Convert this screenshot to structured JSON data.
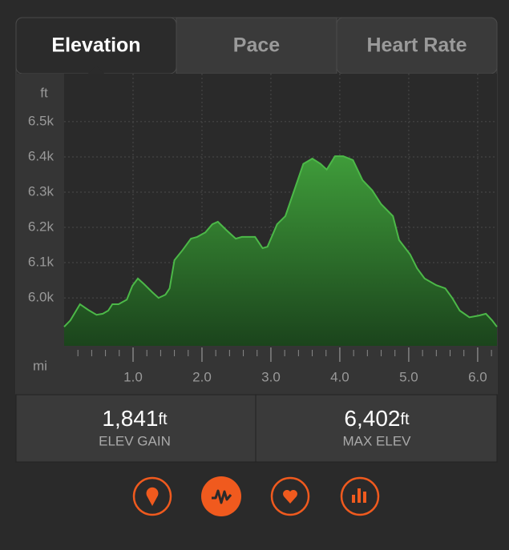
{
  "tabs": [
    "Elevation",
    "Pace",
    "Heart Rate"
  ],
  "chart_data": {
    "type": "area",
    "y_unit": "ft",
    "x_unit": "mi",
    "color": "#4cb848",
    "grid": true,
    "x": [
      0,
      0.09,
      0.23,
      0.35,
      0.47,
      0.56,
      0.64,
      0.7,
      0.79,
      0.91,
      0.99,
      1.07,
      1.16,
      1.28,
      1.37,
      1.47,
      1.53,
      1.6,
      1.72,
      1.84,
      1.93,
      2.05,
      2.15,
      2.23,
      2.35,
      2.49,
      2.58,
      2.77,
      2.88,
      2.95,
      3.09,
      3.21,
      3.33,
      3.47,
      3.6,
      3.72,
      3.81,
      3.93,
      4.05,
      4.19,
      4.33,
      4.47,
      4.6,
      4.77,
      4.86,
      5.02,
      5.12,
      5.23,
      5.4,
      5.53,
      5.63,
      5.74,
      5.88,
      6.02,
      6.12,
      6.21,
      6.28
    ],
    "values": [
      5918,
      5936,
      5982,
      5966,
      5952,
      5955,
      5964,
      5982,
      5982,
      5995,
      6034,
      6055,
      6039,
      6016,
      6000,
      6009,
      6027,
      6107,
      6136,
      6168,
      6173,
      6186,
      6209,
      6216,
      6193,
      6168,
      6173,
      6173,
      6141,
      6145,
      6209,
      6232,
      6300,
      6380,
      6395,
      6380,
      6364,
      6402,
      6402,
      6391,
      6334,
      6305,
      6266,
      6232,
      6164,
      6123,
      6084,
      6055,
      6036,
      6027,
      6000,
      5964,
      5945,
      5950,
      5955,
      5936,
      5918
    ],
    "xlim": [
      0,
      6.28
    ],
    "ylim": [
      5864,
      6636
    ],
    "xticks": [
      {
        "value": 1,
        "label": "1.0"
      },
      {
        "value": 2,
        "label": "2.0"
      },
      {
        "value": 3,
        "label": "3.0"
      },
      {
        "value": 4,
        "label": "4.0"
      },
      {
        "value": 5,
        "label": "5.0"
      },
      {
        "value": 6,
        "label": "6.0"
      }
    ],
    "xminor": [
      0.2,
      0.4,
      0.6,
      0.8,
      1.2,
      1.4,
      1.6,
      1.8,
      2.2,
      2.4,
      2.6,
      2.8,
      3.2,
      3.4,
      3.6,
      3.8,
      4.2,
      4.4,
      4.6,
      4.8,
      5.2,
      5.4,
      5.6,
      5.8,
      6.2
    ],
    "yticks": [
      {
        "value": 6000,
        "label": "6.0k"
      },
      {
        "value": 6100,
        "label": "6.1k"
      },
      {
        "value": 6200,
        "label": "6.2k"
      },
      {
        "value": 6300,
        "label": "6.3k"
      },
      {
        "value": 6400,
        "label": "6.4k"
      },
      {
        "value": 6500,
        "label": "6.5k"
      }
    ]
  },
  "stats": [
    {
      "value": "1,841",
      "unit": "ft",
      "label": "ELEV GAIN"
    },
    {
      "value": "6,402",
      "unit": "ft",
      "label": "MAX ELEV"
    }
  ]
}
